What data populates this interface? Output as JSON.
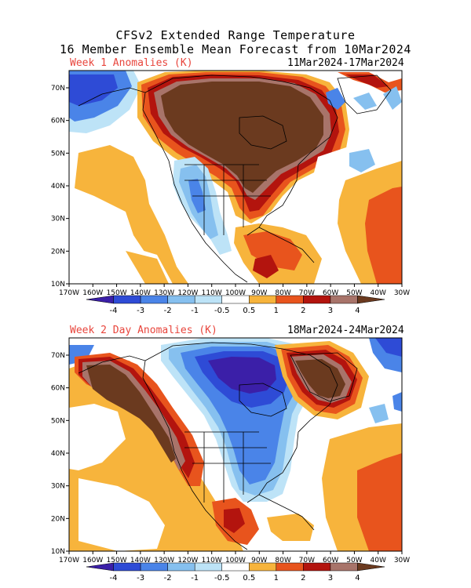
{
  "header": {
    "line1": "CFSv2 Extended Range Temperature",
    "line2": "16 Member Ensemble Mean Forecast from 10Mar2024"
  },
  "panels": [
    {
      "label": "Week 1 Anomalies (K)",
      "dates": "11Mar2024-17Mar2024"
    },
    {
      "label": "Week 2 Day Anomalies (K)",
      "dates": "18Mar2024-24Mar2024"
    }
  ],
  "axes": {
    "lat_labels": [
      "70N",
      "60N",
      "50N",
      "40N",
      "30N",
      "20N",
      "10N"
    ],
    "lon_labels": [
      "170W",
      "160W",
      "150W",
      "140W",
      "130W",
      "120W",
      "110W",
      "100W",
      "90W",
      "80W",
      "70W",
      "60W",
      "50W",
      "40W",
      "30W"
    ]
  },
  "colorbar": {
    "labels": [
      "-4",
      "-3",
      "-2",
      "-1",
      "-0.5",
      "0.5",
      "1",
      "2",
      "3",
      "4"
    ],
    "colors": [
      "#3b1fa8",
      "#2e4bd6",
      "#4a84e8",
      "#86c0ef",
      "#bde3f7",
      "#ffffff",
      "#f7b43c",
      "#e8541d",
      "#b3140e",
      "#a8746a",
      "#6b3a1f"
    ]
  }
}
